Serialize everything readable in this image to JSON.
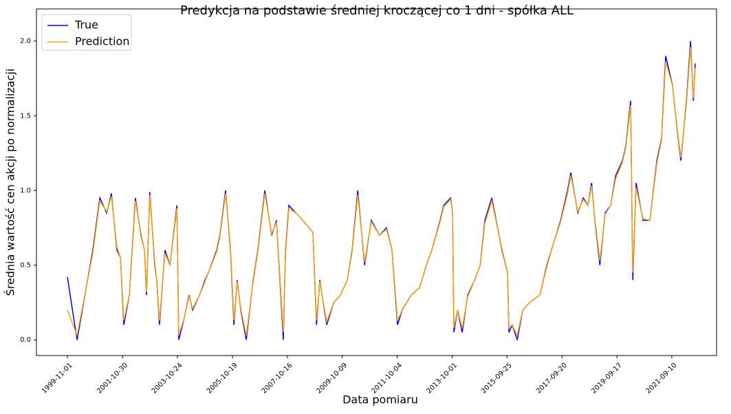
{
  "chart_data": {
    "type": "line",
    "title": "Predykcja na podstawie średniej kroczącej co 1 dni - spółka ALL",
    "x_label": "Data pomiaru",
    "y_label": "Średnia wartość cen akcji po normalizacji",
    "x": [
      1999.83,
      2000.18,
      2000.75,
      2001.0,
      2001.25,
      2001.42,
      2001.62,
      2001.75,
      2001.87,
      2002.07,
      2002.29,
      2002.49,
      2002.62,
      2002.69,
      2002.81,
      2002.99,
      2003.06,
      2003.16,
      2003.36,
      2003.54,
      2003.79,
      2003.86,
      2004.06,
      2004.23,
      2004.36,
      2004.61,
      2004.81,
      2004.93,
      2005.23,
      2005.35,
      2005.55,
      2005.73,
      2005.85,
      2005.97,
      2006.1,
      2006.3,
      2006.55,
      2006.72,
      2006.97,
      2007.22,
      2007.39,
      2007.64,
      2007.72,
      2007.84,
      2008.09,
      2008.34,
      2008.71,
      2008.84,
      2008.96,
      2009.21,
      2009.46,
      2009.71,
      2009.95,
      2010.13,
      2010.33,
      2010.58,
      2010.82,
      2011.12,
      2011.37,
      2011.57,
      2011.77,
      2011.94,
      2012.27,
      2012.57,
      2012.81,
      2013.01,
      2013.31,
      2013.44,
      2013.69,
      2013.76,
      2013.81,
      2013.94,
      2014.11,
      2014.31,
      2014.56,
      2014.76,
      2014.93,
      2015.18,
      2015.55,
      2015.75,
      2015.8,
      2015.92,
      2016.1,
      2016.3,
      2016.55,
      2016.92,
      2017.17,
      2017.42,
      2017.67,
      2017.92,
      2018.04,
      2018.29,
      2018.49,
      2018.66,
      2018.79,
      2018.91,
      2019.09,
      2019.28,
      2019.48,
      2019.66,
      2019.91,
      2020.03,
      2020.2,
      2020.28,
      2020.4,
      2020.65,
      2020.9,
      2021.15,
      2021.32,
      2021.47,
      2021.72,
      2021.89,
      2022.02,
      2022.22,
      2022.37,
      2022.47,
      2022.54
    ],
    "series": [
      {
        "name": "True",
        "color": "#0000ff",
        "values": [
          0.42,
          0.0,
          0.6,
          0.95,
          0.85,
          0.98,
          0.6,
          0.55,
          0.1,
          0.3,
          0.95,
          0.7,
          0.6,
          0.3,
          0.99,
          0.5,
          0.4,
          0.1,
          0.6,
          0.5,
          0.9,
          0.0,
          0.15,
          0.3,
          0.2,
          0.3,
          0.4,
          0.45,
          0.6,
          0.7,
          1.0,
          0.6,
          0.1,
          0.4,
          0.2,
          0.0,
          0.4,
          0.6,
          1.0,
          0.7,
          0.8,
          0.0,
          0.6,
          0.9,
          0.85,
          0.8,
          0.72,
          0.1,
          0.4,
          0.1,
          0.25,
          0.3,
          0.4,
          0.6,
          1.0,
          0.5,
          0.8,
          0.7,
          0.75,
          0.6,
          0.1,
          0.2,
          0.3,
          0.35,
          0.5,
          0.6,
          0.8,
          0.9,
          0.95,
          0.85,
          0.05,
          0.2,
          0.05,
          0.3,
          0.4,
          0.5,
          0.8,
          0.95,
          0.6,
          0.45,
          0.05,
          0.1,
          0.0,
          0.2,
          0.25,
          0.3,
          0.5,
          0.65,
          0.8,
          1.0,
          1.12,
          0.85,
          0.95,
          0.9,
          1.05,
          0.8,
          0.5,
          0.85,
          0.9,
          1.1,
          1.2,
          1.3,
          1.6,
          0.4,
          1.05,
          0.8,
          0.8,
          1.2,
          1.35,
          1.9,
          1.7,
          1.4,
          1.2,
          1.6,
          2.0,
          1.6,
          1.85
        ]
      },
      {
        "name": "Prediction",
        "color": "#ffa500",
        "values": [
          0.2,
          0.03,
          0.58,
          0.93,
          0.86,
          0.96,
          0.62,
          0.55,
          0.13,
          0.3,
          0.93,
          0.71,
          0.6,
          0.32,
          0.97,
          0.52,
          0.4,
          0.13,
          0.58,
          0.5,
          0.88,
          0.03,
          0.15,
          0.29,
          0.21,
          0.3,
          0.39,
          0.45,
          0.59,
          0.69,
          0.98,
          0.62,
          0.13,
          0.39,
          0.21,
          0.03,
          0.39,
          0.59,
          0.98,
          0.71,
          0.79,
          0.05,
          0.58,
          0.88,
          0.85,
          0.8,
          0.72,
          0.13,
          0.39,
          0.12,
          0.25,
          0.3,
          0.4,
          0.59,
          0.97,
          0.52,
          0.79,
          0.7,
          0.74,
          0.6,
          0.13,
          0.2,
          0.3,
          0.35,
          0.5,
          0.6,
          0.79,
          0.89,
          0.94,
          0.85,
          0.08,
          0.2,
          0.08,
          0.29,
          0.4,
          0.5,
          0.78,
          0.93,
          0.61,
          0.45,
          0.08,
          0.1,
          0.03,
          0.2,
          0.25,
          0.3,
          0.49,
          0.65,
          0.79,
          0.98,
          1.1,
          0.86,
          0.94,
          0.9,
          1.03,
          0.81,
          0.53,
          0.84,
          0.9,
          1.08,
          1.19,
          1.29,
          1.57,
          0.45,
          1.02,
          0.81,
          0.8,
          1.18,
          1.34,
          1.86,
          1.7,
          1.41,
          1.22,
          1.58,
          1.96,
          1.62,
          1.82
        ]
      }
    ],
    "xlim": [
      1998.71,
      2023.31
    ],
    "xticks": [
      {
        "value": 1999.83,
        "label": "1999-11-01"
      },
      {
        "value": 2001.83,
        "label": "2001-10-30"
      },
      {
        "value": 2003.81,
        "label": "2003-10-24"
      },
      {
        "value": 2005.8,
        "label": "2005-10-19"
      },
      {
        "value": 2007.79,
        "label": "2007-10-16"
      },
      {
        "value": 2009.77,
        "label": "2009-10-09"
      },
      {
        "value": 2011.76,
        "label": "2011-10-04"
      },
      {
        "value": 2013.75,
        "label": "2013-10-01"
      },
      {
        "value": 2015.73,
        "label": "2015-09-25"
      },
      {
        "value": 2017.72,
        "label": "2017-09-20"
      },
      {
        "value": 2019.71,
        "label": "2019-09-17"
      },
      {
        "value": 2021.69,
        "label": "2021-09-10"
      }
    ],
    "ylim": [
      -0.105,
      2.215
    ],
    "yticks": [
      {
        "value": 0,
        "label": "0.0"
      },
      0.5,
      {
        "value": 1,
        "label": "1.0"
      },
      1.5,
      {
        "value": 2,
        "label": "2.0"
      }
    ],
    "grid": false,
    "legend": "upper-left"
  }
}
